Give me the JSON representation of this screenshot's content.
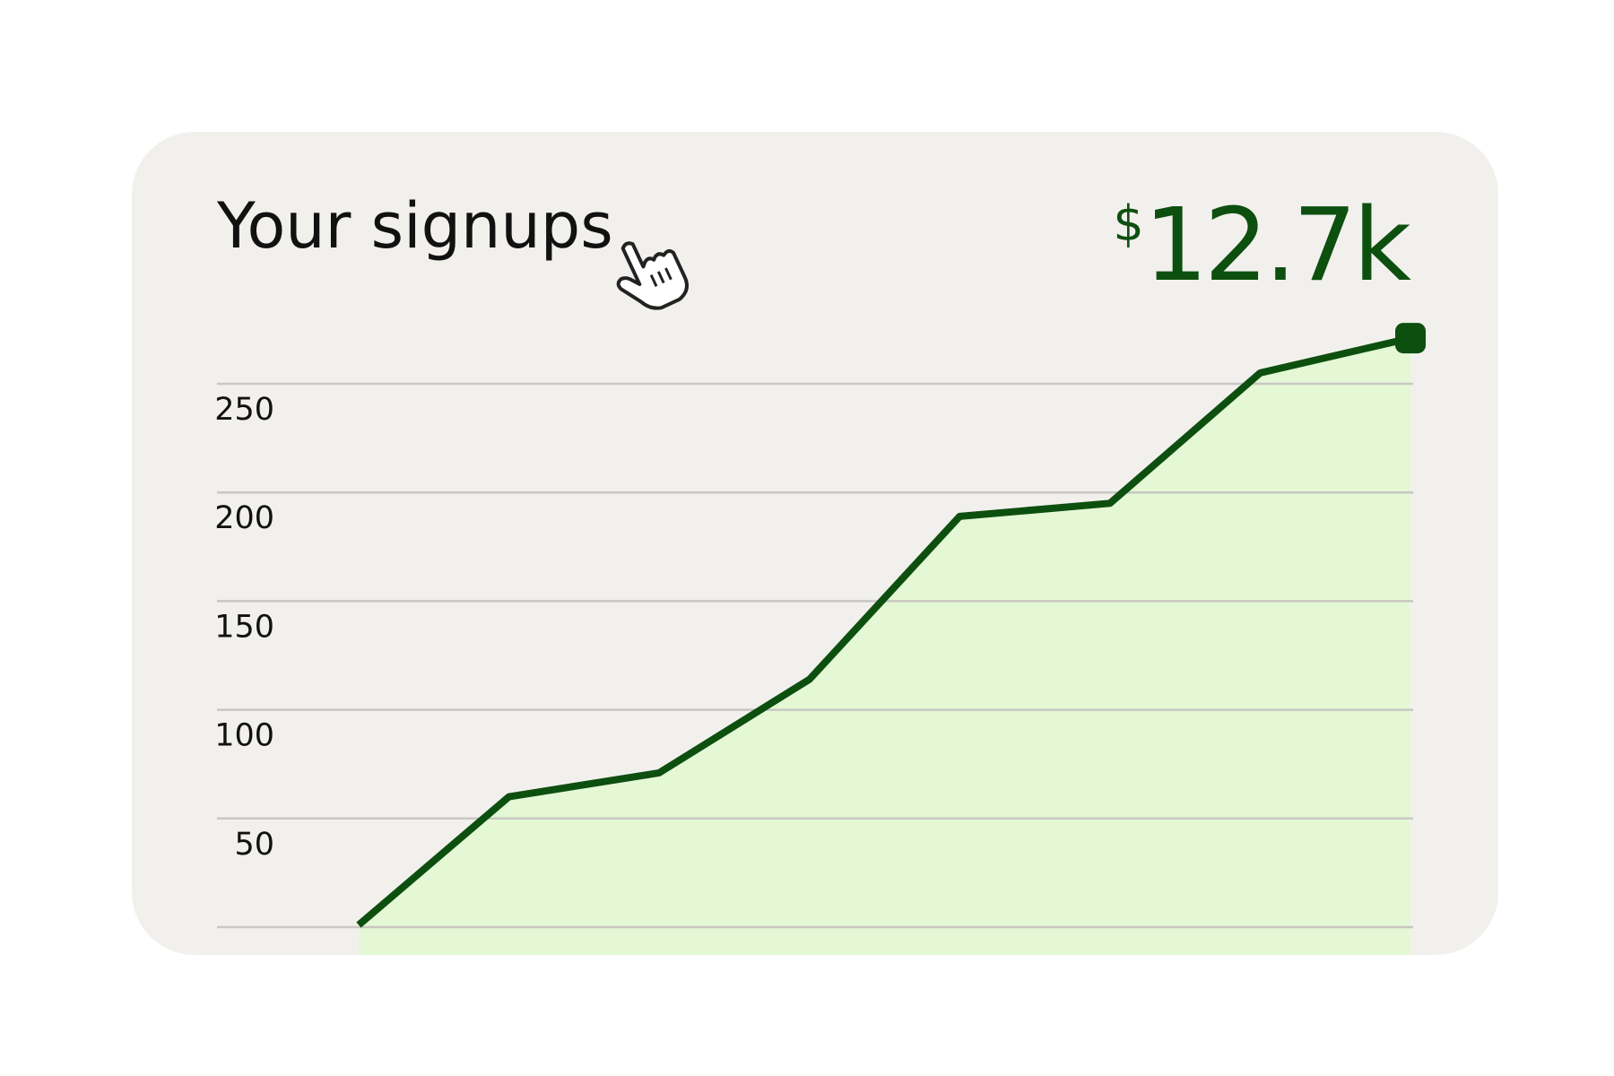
{
  "chart_data": {
    "type": "line",
    "title": "Your signups",
    "currency_symbol": "$",
    "headline": "12.7k",
    "categories": [
      null,
      null,
      null,
      null,
      null,
      null,
      null,
      null
    ],
    "series": [
      {
        "name": null,
        "color": "#0d4f0f",
        "fill": "#e4f8d5",
        "values": [
          1,
          60,
          71,
          114,
          189,
          195,
          255,
          271
        ]
      }
    ],
    "ylim": [
      0,
      300
    ],
    "yticks": [
      50,
      100,
      150,
      200,
      250
    ],
    "grid": true
  }
}
